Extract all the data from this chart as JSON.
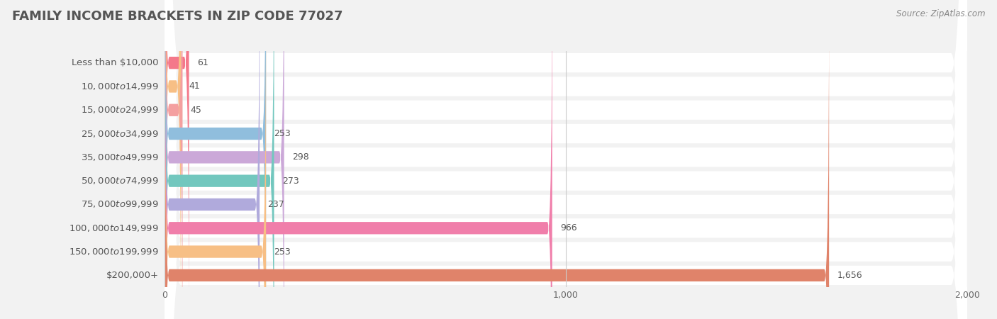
{
  "title": "FAMILY INCOME BRACKETS IN ZIP CODE 77027",
  "source_text": "Source: ZipAtlas.com",
  "categories": [
    "Less than $10,000",
    "$10,000 to $14,999",
    "$15,000 to $24,999",
    "$25,000 to $34,999",
    "$35,000 to $49,999",
    "$50,000 to $74,999",
    "$75,000 to $99,999",
    "$100,000 to $149,999",
    "$150,000 to $199,999",
    "$200,000+"
  ],
  "values": [
    61,
    41,
    45,
    253,
    298,
    273,
    237,
    966,
    253,
    1656
  ],
  "bar_colors": [
    "#F4788A",
    "#F7BF85",
    "#F4A0A0",
    "#90BEDD",
    "#CBA8D8",
    "#72C7BE",
    "#B0AADC",
    "#F07EAA",
    "#F7BF85",
    "#E0836A"
  ],
  "background_color": "#f2f2f2",
  "row_bg_color": "#ffffff",
  "row_separator_color": "#e0e0e0",
  "xlim": [
    0,
    2000
  ],
  "xticks": [
    0,
    1000,
    2000
  ],
  "title_fontsize": 13,
  "label_fontsize": 9.5,
  "value_fontsize": 9,
  "source_fontsize": 8.5
}
